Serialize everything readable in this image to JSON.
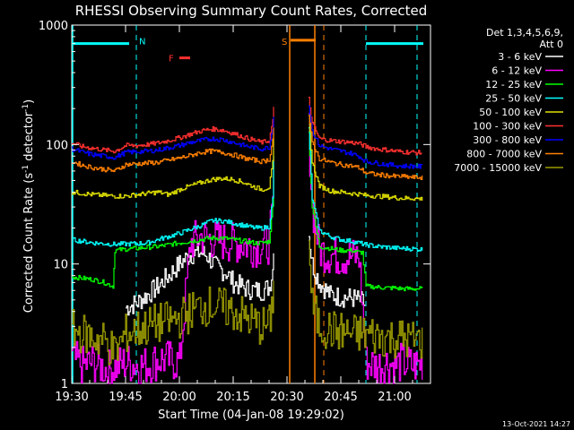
{
  "chart_data": {
    "type": "line",
    "title": "RHESSI Observing Summary Count Rates, Corrected",
    "xlabel": "Start Time (04-Jan-08 19:29:02)",
    "ylabel": "Corrected Count Rate (s⁻¹ detector⁻¹)",
    "ylabel_parts": {
      "main": "Corrected Count Rate (s",
      "sup1": "-1",
      "mid": " detector",
      "sup2": "-1",
      "end": ")"
    },
    "x_unit": "minutes after 19:30",
    "xlim": [
      0,
      100
    ],
    "ylim": [
      1,
      1000
    ],
    "yscale": "log",
    "x_ticks": [
      {
        "value": 0,
        "label": "19:30"
      },
      {
        "value": 15,
        "label": "19:45"
      },
      {
        "value": 30,
        "label": "20:00"
      },
      {
        "value": 45,
        "label": "20:15"
      },
      {
        "value": 60,
        "label": "20:30"
      },
      {
        "value": 75,
        "label": "20:45"
      },
      {
        "value": 90,
        "label": "21:00"
      }
    ],
    "y_ticks": [
      {
        "value": 1,
        "label": "1"
      },
      {
        "value": 10,
        "label": "10"
      },
      {
        "value": 100,
        "label": "100"
      },
      {
        "value": 1000,
        "label": "1000"
      }
    ],
    "legend": {
      "placement": "right",
      "header": [
        "Det 1,3,4,5,6,9,",
        "Att 0"
      ],
      "entries": [
        {
          "label": "3 - 6 keV",
          "color": "#ffffff"
        },
        {
          "label": "6 - 12 keV",
          "color": "#ff00ff"
        },
        {
          "label": "12 - 25 keV",
          "color": "#00ff00"
        },
        {
          "label": "25 - 50 keV",
          "color": "#00ffff"
        },
        {
          "label": "50 - 100 keV",
          "color": "#e0e000"
        },
        {
          "label": "100 - 300 keV",
          "color": "#ff3030"
        },
        {
          "label": "300 - 800 keV",
          "color": "#0000ff"
        },
        {
          "label": "800 - 7000 keV",
          "color": "#ff8000"
        },
        {
          "label": "7000 - 15000 keV",
          "color": "#9a9a00"
        }
      ]
    },
    "series": [
      {
        "name": "3 - 6 keV",
        "color": "#ffffff",
        "x": [
          0,
          5,
          10,
          13,
          15,
          18,
          21,
          24,
          27,
          30,
          33,
          36,
          38,
          40,
          43,
          45,
          48,
          51,
          53,
          55,
          56,
          56.5,
          66,
          67,
          69,
          72,
          75,
          78,
          80,
          82,
          85,
          88,
          90,
          92,
          95,
          98,
          100
        ],
        "y": [
          null,
          null,
          null,
          null,
          4.3,
          4.7,
          5.5,
          6.5,
          8,
          10,
          12,
          12.5,
          11.5,
          9.5,
          8.5,
          7,
          6.3,
          6,
          6,
          6.4,
          9,
          24,
          18,
          10,
          7,
          5.5,
          5.3,
          5.2,
          5,
          4.5,
          null,
          null,
          null,
          null,
          null,
          null,
          null
        ]
      },
      {
        "name": "6 - 12 keV",
        "color": "#ff00ff",
        "x": [
          0,
          3,
          6,
          10,
          15,
          20,
          25,
          30,
          33,
          36,
          39,
          42,
          45,
          48,
          51,
          53,
          55,
          56,
          56.5,
          66,
          67,
          69,
          72,
          75,
          78,
          80,
          82,
          85,
          88,
          90,
          92,
          95,
          98
        ],
        "y": [
          1.6,
          1.4,
          1.5,
          1.3,
          1.5,
          1.4,
          1.6,
          1.5,
          15,
          17,
          16,
          15.5,
          15,
          14.5,
          14,
          14,
          15,
          30,
          170,
          130,
          30,
          13,
          12,
          11.5,
          11.5,
          11.5,
          1.5,
          1.4,
          1.5,
          1.4,
          1.5,
          1.4,
          1.5
        ]
      },
      {
        "name": "12 - 25 keV",
        "color": "#00ff00",
        "x": [
          0,
          3,
          6,
          9,
          11.5,
          12,
          15,
          18,
          21,
          24,
          27,
          30,
          33,
          36,
          39,
          42,
          45,
          48,
          51,
          53,
          55,
          56,
          56.5,
          66,
          67,
          69,
          72,
          75,
          78,
          80,
          81,
          82,
          85,
          88,
          90,
          92,
          95,
          98
        ],
        "y": [
          7.8,
          7.6,
          7.4,
          7,
          6.5,
          13,
          13.3,
          13.5,
          13.8,
          14,
          14.5,
          15,
          15.5,
          16,
          16.5,
          16.5,
          16,
          15.5,
          15,
          15,
          15.5,
          30,
          170,
          130,
          30,
          14,
          13.5,
          13,
          13,
          12.5,
          12.5,
          6.5,
          6.4,
          6.3,
          6.3,
          6.2,
          6.2,
          6.2
        ]
      },
      {
        "name": "25 - 50 keV",
        "color": "#00ffff",
        "x": [
          0,
          3,
          6,
          9,
          12,
          15,
          18,
          21,
          24,
          27,
          30,
          33,
          36,
          39,
          42,
          45,
          48,
          51,
          53,
          55,
          56,
          56.5,
          66,
          67,
          69,
          72,
          75,
          78,
          80,
          82,
          85,
          88,
          90,
          92,
          95,
          98
        ],
        "y": [
          16,
          15.5,
          15,
          14.8,
          14.6,
          14.7,
          14.8,
          15,
          16,
          17,
          18,
          19.5,
          21,
          23,
          23,
          22,
          21,
          20,
          20,
          20.5,
          35,
          180,
          140,
          35,
          19,
          17,
          16,
          15.5,
          15,
          14.5,
          14,
          13.8,
          13.6,
          13.5,
          13.4,
          13.2
        ]
      },
      {
        "name": "50 - 100 keV",
        "color": "#e0e000",
        "x": [
          0,
          3,
          6,
          9,
          12,
          15,
          18,
          21,
          24,
          27,
          30,
          33,
          36,
          39,
          42,
          45,
          48,
          51,
          53,
          55,
          56,
          56.5,
          66,
          67,
          69,
          72,
          75,
          78,
          80,
          82,
          85,
          88,
          90,
          92,
          95,
          98
        ],
        "y": [
          40,
          39,
          38,
          37.5,
          37,
          37,
          38,
          39,
          40,
          38,
          42,
          45,
          48,
          51,
          52,
          51,
          48,
          44,
          42,
          44,
          70,
          220,
          170,
          70,
          45,
          41,
          40,
          39,
          38.5,
          37.5,
          37,
          36.5,
          36,
          35.5,
          35.5,
          35
        ]
      },
      {
        "name": "100 - 300 keV",
        "color": "#ff3030",
        "x": [
          0,
          3,
          6,
          9,
          12,
          15,
          18,
          21,
          24,
          27,
          30,
          33,
          36,
          39,
          42,
          45,
          48,
          51,
          53,
          55,
          56,
          56.5,
          66,
          67,
          69,
          72,
          75,
          78,
          80,
          82,
          85,
          88,
          90,
          92,
          95,
          98
        ],
        "y": [
          103,
          96,
          93,
          90,
          88,
          98,
          98,
          100,
          103,
          108,
          114,
          122,
          130,
          135,
          132,
          124,
          115,
          108,
          104,
          108,
          160,
          250,
          240,
          150,
          112,
          108,
          106,
          104,
          102,
          96,
          92,
          90,
          88,
          87,
          86,
          85
        ]
      },
      {
        "name": "300 - 800 keV",
        "color": "#0000ff",
        "x": [
          0,
          3,
          6,
          9,
          12,
          15,
          18,
          21,
          24,
          27,
          30,
          33,
          36,
          39,
          42,
          45,
          48,
          51,
          53,
          55,
          56,
          56.5,
          66,
          67,
          69,
          72,
          75,
          78,
          80,
          82,
          85,
          88,
          90,
          92,
          95,
          98
        ],
        "y": [
          92,
          86,
          82,
          80,
          78,
          86,
          87,
          88,
          90,
          94,
          98,
          104,
          108,
          112,
          110,
          104,
          98,
          94,
          92,
          95,
          140,
          220,
          210,
          130,
          98,
          92,
          88,
          84,
          80,
          72,
          70,
          68,
          67,
          66,
          66,
          65
        ]
      },
      {
        "name": "800 - 7000 keV",
        "color": "#ff8000",
        "x": [
          0,
          3,
          6,
          9,
          12,
          15,
          18,
          21,
          24,
          27,
          30,
          33,
          36,
          39,
          42,
          45,
          48,
          51,
          53,
          55,
          56,
          56.5,
          66,
          67,
          69,
          72,
          75,
          78,
          80,
          82,
          85,
          88,
          90,
          92,
          95,
          98
        ],
        "y": [
          72,
          67,
          64,
          62,
          60,
          68,
          69,
          70,
          71,
          74,
          77,
          81,
          86,
          88,
          86,
          82,
          77,
          74,
          72,
          75,
          110,
          180,
          170,
          105,
          76,
          71,
          68,
          66,
          64,
          58,
          56,
          55,
          54,
          54,
          53,
          53
        ]
      },
      {
        "name": "7000 - 15000 keV",
        "color": "#9a9a00",
        "x": [
          0,
          3,
          6,
          9,
          12,
          15,
          18,
          21,
          24,
          27,
          30,
          33,
          36,
          39,
          42,
          45,
          48,
          51,
          53,
          55,
          56,
          56.5,
          66,
          67,
          69,
          72,
          75,
          78,
          80,
          82,
          85,
          88,
          90,
          92,
          95,
          98
        ],
        "y": [
          2.8,
          2.6,
          2.4,
          2.3,
          1.8,
          2.6,
          2.8,
          3.0,
          3.2,
          3.3,
          3.5,
          4.0,
          4.4,
          4.5,
          4.3,
          4.0,
          3.6,
          3.2,
          3.0,
          3.1,
          5,
          15,
          14,
          4.5,
          3.0,
          2.8,
          2.7,
          2.6,
          2.6,
          2.6,
          2.5,
          2.4,
          2.4,
          2.4,
          2.3,
          2.3
        ]
      }
    ],
    "annotations": {
      "night_bars": [
        {
          "x0": 0,
          "x1": 18,
          "y": 700,
          "label": "N",
          "color": "#00ffff"
        },
        {
          "x0": 82,
          "x1": 100,
          "y": 700,
          "label": "",
          "color": "#00ffff"
        }
      ],
      "saa_bar": {
        "x0": 61,
        "x1": 68,
        "y": 800,
        "label": "S",
        "color": "#ff8000"
      },
      "flare_bar": {
        "x0": 30,
        "x1": 33,
        "y": 550,
        "label": "F",
        "color": "#ff3030"
      },
      "cyan_dashed_lines": [
        18,
        82,
        100
      ],
      "cyan_solid_lines": [
        0
      ],
      "orange_solid_lines": [
        61,
        68
      ],
      "orange_dashed_lines": [
        68.5
      ]
    },
    "grid": false
  },
  "footer": {
    "date_stamp": "13-Oct-2021 14:27"
  }
}
